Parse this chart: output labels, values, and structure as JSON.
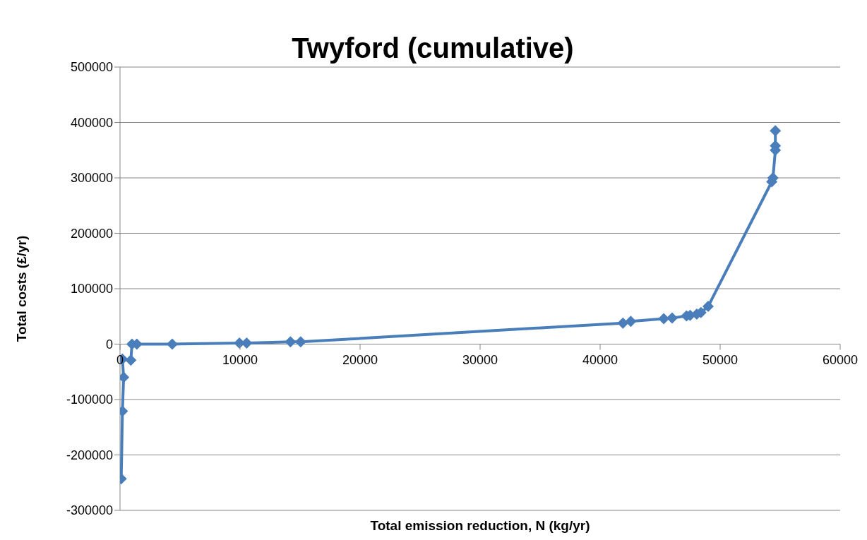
{
  "chart_data": {
    "type": "line",
    "title": "Twyford (cumulative)",
    "xlabel": "Total emission reduction, N (kg/yr)",
    "ylabel": "Total costs (£/yr)",
    "x": [
      100,
      200,
      300,
      200,
      900,
      1000,
      1400,
      4350,
      9950,
      10550,
      14200,
      15050,
      41900,
      42550,
      45300,
      46000,
      47200,
      47500,
      48050,
      48400,
      49000,
      54300,
      54400,
      54600,
      54600,
      54600
    ],
    "series": [
      {
        "color": "#4a7ebb",
        "values": [
          -243000,
          -121000,
          -60000,
          -27000,
          -29000,
          0,
          0,
          0,
          2000,
          2000,
          4000,
          4000,
          38000,
          41000,
          46000,
          47000,
          51000,
          52000,
          54000,
          57000,
          68000,
          293000,
          300000,
          350000,
          358000,
          385000
        ]
      }
    ],
    "xlim": [
      0,
      60000
    ],
    "xticks": [
      0,
      10000,
      20000,
      30000,
      40000,
      50000,
      60000
    ],
    "ylim": [
      -300000,
      500000
    ],
    "yticks": [
      -300000,
      -200000,
      -100000,
      0,
      100000,
      200000,
      300000,
      400000,
      500000
    ],
    "grid": "y",
    "marker": "diamond",
    "line_style": "solid",
    "legend": false
  }
}
